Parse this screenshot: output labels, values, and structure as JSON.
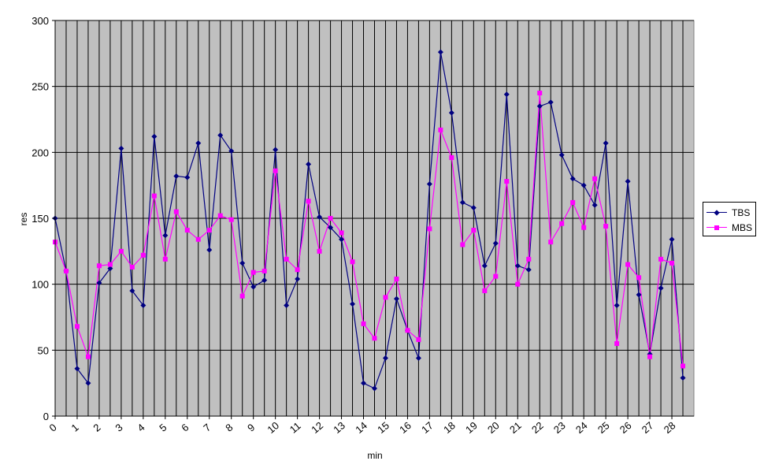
{
  "chart_data": {
    "type": "line",
    "title": "",
    "xlabel": "min",
    "ylabel": "res",
    "ylim": [
      0,
      300
    ],
    "yticks": [
      0,
      50,
      100,
      150,
      200,
      250,
      300
    ],
    "xlim": [
      0,
      29
    ],
    "xticks": [
      0,
      1,
      2,
      3,
      4,
      5,
      6,
      7,
      8,
      9,
      10,
      11,
      12,
      13,
      14,
      15,
      16,
      17,
      18,
      19,
      20,
      21,
      22,
      23,
      24,
      25,
      26,
      27,
      28
    ],
    "xtick_labels": [
      "0",
      "1",
      "2",
      "3",
      "4",
      "5",
      "6",
      "7",
      "8",
      "9",
      "10",
      "11",
      "12",
      "13",
      "14",
      "15",
      "16",
      "17",
      "18",
      "19",
      "20",
      "21",
      "22",
      "23",
      "24",
      "25",
      "26",
      "27",
      "28"
    ],
    "plot_background": "#c0c0c0",
    "grid": "horizontal major lines, vertical line at each half-minute",
    "legend_position": "right",
    "x": [
      0,
      0.5,
      1,
      1.5,
      2,
      2.5,
      3,
      3.5,
      4,
      4.5,
      5,
      5.5,
      6,
      6.5,
      7,
      7.5,
      8,
      8.5,
      9,
      9.5,
      10,
      10.5,
      11,
      11.5,
      12,
      12.5,
      13,
      13.5,
      14,
      14.5,
      15,
      15.5,
      16,
      16.5,
      17,
      17.5,
      18,
      18.5,
      19,
      19.5,
      20,
      20.5,
      21,
      21.5,
      22,
      22.5,
      23,
      23.5,
      24,
      24.5,
      25,
      25.5,
      26,
      26.5,
      27,
      27.5,
      28,
      28.5
    ],
    "series": [
      {
        "name": "TBS",
        "color": "#000080",
        "marker": "diamond",
        "values": [
          150,
          110,
          36,
          25,
          101,
          112,
          203,
          95,
          84,
          212,
          137,
          182,
          181,
          207,
          126,
          213,
          201,
          116,
          98,
          103,
          202,
          84,
          104,
          191,
          151,
          143,
          134,
          85,
          25,
          21,
          44,
          89,
          65,
          44,
          176,
          276,
          230,
          162,
          158,
          114,
          131,
          244,
          114,
          111,
          235,
          238,
          198,
          180,
          175,
          160,
          207,
          84,
          178,
          92,
          47,
          97,
          134,
          29
        ]
      },
      {
        "name": "MBS",
        "color": "#ff00ff",
        "marker": "square",
        "values": [
          132,
          110,
          68,
          45,
          114,
          115,
          125,
          113,
          122,
          167,
          119,
          155,
          141,
          134,
          141,
          152,
          149,
          91,
          109,
          110,
          186,
          119,
          111,
          163,
          125,
          150,
          139,
          117,
          70,
          59,
          90,
          104,
          65,
          58,
          142,
          217,
          196,
          130,
          141,
          95,
          106,
          178,
          100,
          119,
          245,
          132,
          146,
          162,
          143,
          180,
          144,
          55,
          115,
          105,
          45,
          119,
          116,
          38
        ]
      }
    ]
  }
}
